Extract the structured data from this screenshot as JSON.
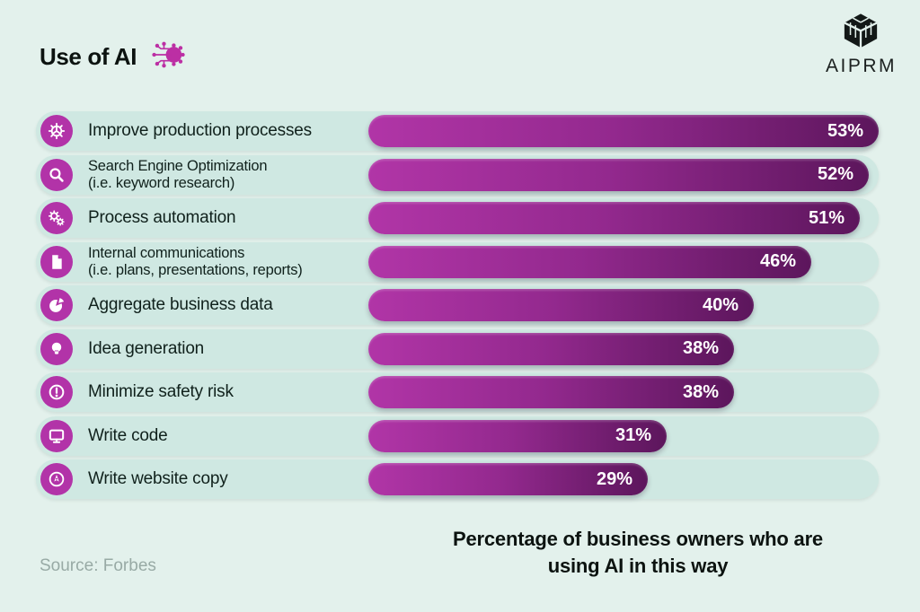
{
  "header": {
    "title": "Use of AI",
    "title_icon": "ai-circuit-brain-icon",
    "brand": {
      "name": "AIPRM",
      "icon": "aiprm-cube-logo"
    }
  },
  "chart_data": {
    "type": "bar",
    "orientation": "horizontal",
    "title": "Use of AI",
    "categories": [
      "Improve production processes",
      "Search Engine Optimization (i.e. keyword research)",
      "Process automation",
      "Internal communications (i.e. plans, presentations, reports)",
      "Aggregate business data",
      "Idea generation",
      "Minimize safety risk",
      "Write code",
      "Write website copy"
    ],
    "values": [
      53,
      52,
      51,
      46,
      40,
      38,
      38,
      31,
      29
    ],
    "unit": "%",
    "xlim": [
      0,
      53
    ],
    "grid": false,
    "legend": false,
    "value_labels": "inside bar end, white bold",
    "caption": "Percentage of business owners who are using AI in this way",
    "source": "Source: Forbes"
  },
  "rows": [
    {
      "icon": "gear-icon",
      "label": "Improve production processes",
      "sublabel": "",
      "value": 53,
      "value_label": "53%"
    },
    {
      "icon": "magnifier-icon",
      "label": "Search Engine Optimization",
      "sublabel": "(i.e. keyword research)",
      "value": 52,
      "value_label": "52%"
    },
    {
      "icon": "double-gears-icon",
      "label": "Process automation",
      "sublabel": "",
      "value": 51,
      "value_label": "51%"
    },
    {
      "icon": "document-icon",
      "label": "Internal communications",
      "sublabel": "(i.e. plans, presentations, reports)",
      "value": 46,
      "value_label": "46%"
    },
    {
      "icon": "pie-chart-icon",
      "label": "Aggregate business data",
      "sublabel": "",
      "value": 40,
      "value_label": "40%"
    },
    {
      "icon": "lightbulb-icon",
      "label": "Idea generation",
      "sublabel": "",
      "value": 38,
      "value_label": "38%"
    },
    {
      "icon": "alert-icon",
      "label": "Minimize safety risk",
      "sublabel": "",
      "value": 38,
      "value_label": "38%"
    },
    {
      "icon": "monitor-icon",
      "label": "Write code",
      "sublabel": "",
      "value": 31,
      "value_label": "31%"
    },
    {
      "icon": "pen-circle-icon",
      "label": "Write website copy",
      "sublabel": "",
      "value": 29,
      "value_label": "29%"
    }
  ],
  "footer": {
    "caption": "Percentage of business owners who are using AI in this way",
    "source": "Source: Forbes"
  },
  "colors": {
    "background": "#e3f1ec",
    "row_track": "#cfe8e2",
    "bar_gradient_start": "#b135a7",
    "bar_gradient_end": "#5c165c",
    "icon_circle": "#b233a8",
    "bar_value_text": "#ffffff",
    "label_text": "#10211c",
    "source_text": "#98aaa5",
    "title_text": "#0c1310",
    "logo_black": "#131817"
  }
}
